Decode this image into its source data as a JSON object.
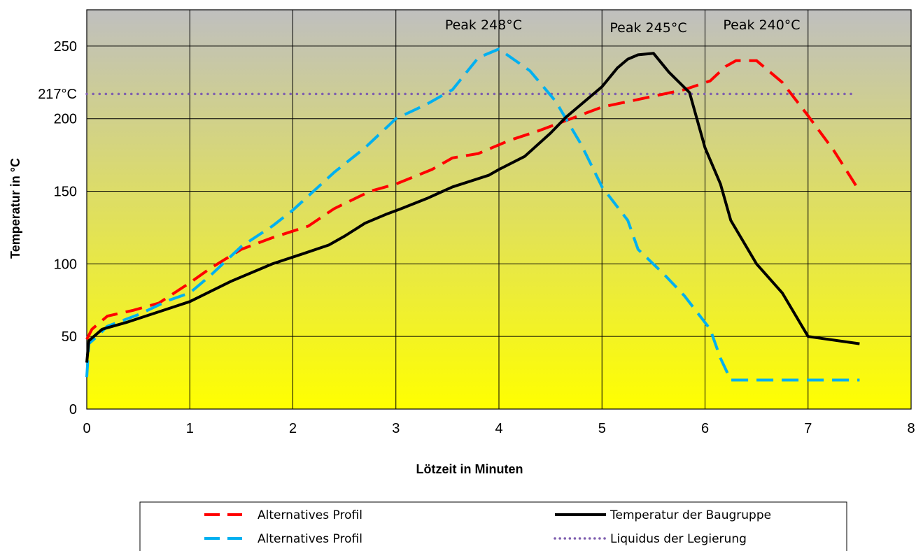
{
  "chart_data": {
    "type": "line",
    "title": "",
    "xlabel": "Lötzeit in Minuten",
    "ylabel": "Temperatur in °C",
    "xlim": [
      0,
      8
    ],
    "ylim": [
      0,
      275
    ],
    "x_ticks": [
      "0",
      "1",
      "2",
      "3",
      "4",
      "5",
      "6",
      "7",
      "8"
    ],
    "y_ticks": [
      "0",
      "50",
      "100",
      "150",
      "200",
      "250"
    ],
    "y_extra_label": "217°C",
    "grid": true,
    "legend_position": "bottom",
    "background_gradient": [
      "#bfbfbf",
      "#ffff00"
    ],
    "annotations": [
      {
        "text": "Peak 248°C",
        "x": 3.85,
        "y": 265
      },
      {
        "text": "Peak 245°C",
        "x": 5.45,
        "y": 263
      },
      {
        "text": "Peak 240°C",
        "x": 6.55,
        "y": 265
      }
    ],
    "series": [
      {
        "name": "Alternatives Profil",
        "color": "#ff0000",
        "dash": "long-dash",
        "points": [
          [
            0,
            48
          ],
          [
            0.05,
            55
          ],
          [
            0.2,
            64
          ],
          [
            0.45,
            68
          ],
          [
            0.7,
            73
          ],
          [
            1.0,
            87
          ],
          [
            1.2,
            97
          ],
          [
            1.5,
            110
          ],
          [
            1.8,
            118
          ],
          [
            2.15,
            126
          ],
          [
            2.4,
            138
          ],
          [
            2.75,
            150
          ],
          [
            3.0,
            155
          ],
          [
            3.35,
            165
          ],
          [
            3.55,
            173
          ],
          [
            3.8,
            176
          ],
          [
            4.1,
            185
          ],
          [
            4.4,
            192
          ],
          [
            4.7,
            200
          ],
          [
            5.0,
            208
          ],
          [
            5.4,
            214
          ],
          [
            5.8,
            220
          ],
          [
            6.05,
            226
          ],
          [
            6.2,
            236
          ],
          [
            6.3,
            240
          ],
          [
            6.5,
            240
          ],
          [
            6.75,
            225
          ],
          [
            7.0,
            202
          ],
          [
            7.25,
            178
          ],
          [
            7.5,
            150
          ]
        ]
      },
      {
        "name": "Alternatives Profil",
        "color": "#00b0f0",
        "dash": "long-dash",
        "points": [
          [
            0,
            22
          ],
          [
            0.02,
            45
          ],
          [
            0.1,
            50
          ],
          [
            0.2,
            57
          ],
          [
            0.5,
            65
          ],
          [
            0.8,
            75
          ],
          [
            1.0,
            80
          ],
          [
            1.2,
            92
          ],
          [
            1.5,
            112
          ],
          [
            1.8,
            126
          ],
          [
            2.0,
            137
          ],
          [
            2.4,
            163
          ],
          [
            2.7,
            180
          ],
          [
            3.0,
            200
          ],
          [
            3.3,
            210
          ],
          [
            3.55,
            220
          ],
          [
            3.8,
            242
          ],
          [
            4.0,
            248
          ],
          [
            4.3,
            233
          ],
          [
            4.55,
            212
          ],
          [
            4.8,
            182
          ],
          [
            5.0,
            153
          ],
          [
            5.25,
            130
          ],
          [
            5.35,
            110
          ],
          [
            5.6,
            93
          ],
          [
            5.8,
            78
          ],
          [
            6.05,
            55
          ],
          [
            6.15,
            35
          ],
          [
            6.25,
            20
          ],
          [
            6.5,
            20
          ],
          [
            7.0,
            20
          ],
          [
            7.5,
            20
          ]
        ]
      },
      {
        "name": "Temperatur der Baugruppe",
        "color": "#000000",
        "dash": "solid",
        "points": [
          [
            0,
            32
          ],
          [
            0.02,
            47
          ],
          [
            0.15,
            55
          ],
          [
            0.4,
            60
          ],
          [
            0.7,
            67
          ],
          [
            1.0,
            74
          ],
          [
            1.4,
            88
          ],
          [
            1.8,
            100
          ],
          [
            2.1,
            107
          ],
          [
            2.35,
            113
          ],
          [
            2.5,
            119
          ],
          [
            2.7,
            128
          ],
          [
            2.9,
            134
          ],
          [
            3.05,
            138
          ],
          [
            3.3,
            145
          ],
          [
            3.55,
            153
          ],
          [
            3.9,
            161
          ],
          [
            4.0,
            165
          ],
          [
            4.25,
            174
          ],
          [
            4.5,
            190
          ],
          [
            4.65,
            201
          ],
          [
            4.8,
            210
          ],
          [
            5.0,
            222
          ],
          [
            5.15,
            235
          ],
          [
            5.25,
            241
          ],
          [
            5.35,
            244
          ],
          [
            5.5,
            245
          ],
          [
            5.65,
            232
          ],
          [
            5.85,
            218
          ],
          [
            6.0,
            180
          ],
          [
            6.15,
            155
          ],
          [
            6.25,
            130
          ],
          [
            6.5,
            100
          ],
          [
            6.75,
            80
          ],
          [
            7.0,
            50
          ],
          [
            7.5,
            45
          ]
        ]
      },
      {
        "name": "Liquidus der Legierung",
        "color": "#7f5faf",
        "dash": "dotted",
        "points": [
          [
            0,
            217
          ],
          [
            7.45,
            217
          ]
        ]
      }
    ],
    "legend": [
      {
        "label": "Alternatives Profil",
        "color": "#ff0000",
        "dash": "long-dash"
      },
      {
        "label": "Temperatur der Baugruppe",
        "color": "#000000",
        "dash": "solid"
      },
      {
        "label": "Alternatives Profil",
        "color": "#00b0f0",
        "dash": "long-dash"
      },
      {
        "label": "Liquidus der Legierung",
        "color": "#7f5faf",
        "dash": "dotted"
      }
    ]
  }
}
